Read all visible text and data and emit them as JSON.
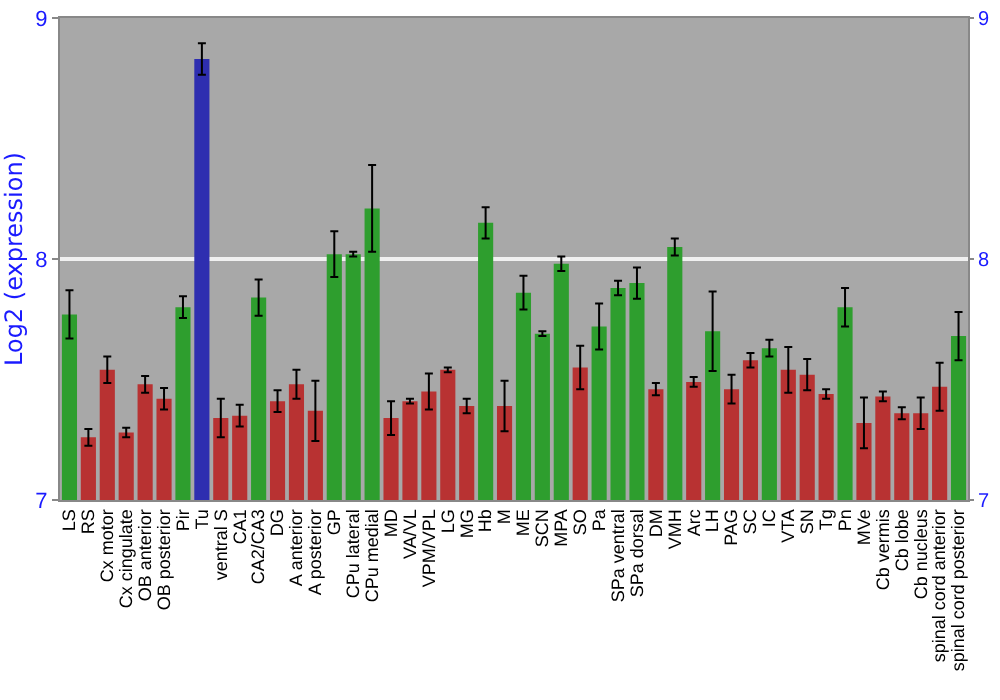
{
  "chart_data": {
    "type": "bar",
    "ylabel": "Log2 (expression)",
    "categories": [
      "LS",
      "RS",
      "Cx motor",
      "Cx cingulate",
      "OB anterior",
      "OB posterior",
      "Pir",
      "Tu",
      "ventral S",
      "CA1",
      "CA2/CA3",
      "DG",
      "A anterior",
      "A posterior",
      "GP",
      "CPu lateral",
      "CPu medial",
      "MD",
      "VA/VL",
      "VPM/VPL",
      "LG",
      "MG",
      "Hb",
      "M",
      "ME",
      "SCN",
      "MPA",
      "SO",
      "Pa",
      "SPa ventral",
      "SPa dorsal",
      "DM",
      "VMH",
      "Arc",
      "LH",
      "PAG",
      "SC",
      "IC",
      "VTA",
      "SN",
      "Tg",
      "Pn",
      "MVe",
      "Cb vermis",
      "Cb lobe",
      "Cb nucleus",
      "spinal cord anterior",
      "spinal cord posterior"
    ],
    "values": [
      7.77,
      7.26,
      7.54,
      7.28,
      7.48,
      7.42,
      7.8,
      8.83,
      7.34,
      7.35,
      7.84,
      7.41,
      7.48,
      7.37,
      8.02,
      8.02,
      8.21,
      7.34,
      7.41,
      7.45,
      7.54,
      7.39,
      8.15,
      7.39,
      7.86,
      7.69,
      7.98,
      7.55,
      7.72,
      7.88,
      7.9,
      7.46,
      8.05,
      7.49,
      7.7,
      7.46,
      7.58,
      7.63,
      7.54,
      7.52,
      7.44,
      7.8,
      7.32,
      7.43,
      7.36,
      7.36,
      7.47,
      7.68
    ],
    "errors": [
      0.1,
      0.035,
      0.055,
      0.02,
      0.035,
      0.045,
      0.045,
      0.065,
      0.08,
      0.045,
      0.075,
      0.045,
      0.06,
      0.125,
      0.095,
      0.01,
      0.18,
      0.07,
      0.01,
      0.075,
      0.01,
      0.03,
      0.065,
      0.105,
      0.07,
      0.01,
      0.03,
      0.09,
      0.095,
      0.03,
      0.065,
      0.025,
      0.035,
      0.02,
      0.165,
      0.06,
      0.03,
      0.035,
      0.095,
      0.065,
      0.02,
      0.08,
      0.105,
      0.02,
      0.025,
      0.065,
      0.1,
      0.1
    ],
    "colors": [
      "#2e9e2e",
      "#b83232",
      "#b83232",
      "#b83232",
      "#b83232",
      "#b83232",
      "#2e9e2e",
      "#2e2eb0",
      "#b83232",
      "#b83232",
      "#2e9e2e",
      "#b83232",
      "#b83232",
      "#b83232",
      "#2e9e2e",
      "#2e9e2e",
      "#2e9e2e",
      "#b83232",
      "#b83232",
      "#b83232",
      "#b83232",
      "#b83232",
      "#2e9e2e",
      "#b83232",
      "#2e9e2e",
      "#2e9e2e",
      "#2e9e2e",
      "#b83232",
      "#2e9e2e",
      "#2e9e2e",
      "#2e9e2e",
      "#b83232",
      "#2e9e2e",
      "#b83232",
      "#2e9e2e",
      "#b83232",
      "#b83232",
      "#2e9e2e",
      "#b83232",
      "#b83232",
      "#b83232",
      "#2e9e2e",
      "#b83232",
      "#b83232",
      "#b83232",
      "#b83232",
      "#b83232",
      "#2e9e2e"
    ],
    "ylim": [
      7,
      9
    ],
    "yticks": [
      7,
      8,
      9
    ],
    "y2lim": [
      7,
      9
    ],
    "y2ticks": [
      7,
      8,
      9
    ],
    "grid": "y"
  }
}
